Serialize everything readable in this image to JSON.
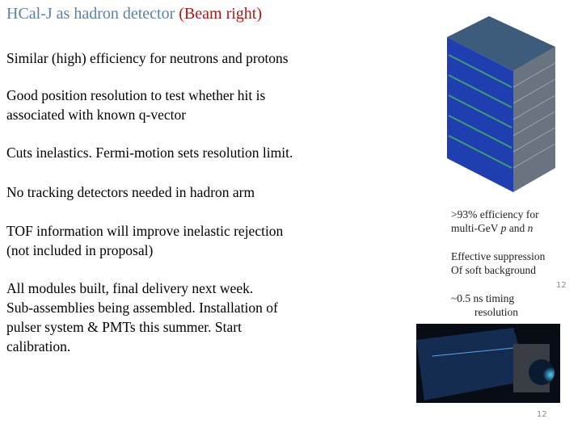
{
  "header": {
    "title": "HCal-J as hadron detector",
    "subtitle": "(Beam right)"
  },
  "bullets": [
    {
      "lines": [
        "Similar (high) efficiency for neutrons and protons"
      ]
    },
    {
      "lines": [
        "Good position resolution to test whether hit is",
        "associated with known q-vector"
      ]
    },
    {
      "lines": [
        "Cuts inelastics.  Fermi-motion sets resolution limit."
      ]
    },
    {
      "lines": [
        "No tracking detectors needed in hadron arm"
      ]
    },
    {
      "lines": [
        "TOF information will improve inelastic rejection",
        "(not included in proposal)"
      ]
    },
    {
      "lines": [
        "All modules built, final delivery next week.",
        "Sub-assemblies being assembled.  Installation of",
        "pulser system & PMTs this summer.  Start",
        "calibration."
      ]
    }
  ],
  "annotations": {
    "efficiency": {
      "line1": ">93% efficiency for",
      "line2": [
        "multi-GeV ",
        "p",
        " and ",
        "n"
      ]
    },
    "suppression": {
      "lines": [
        "Effective suppression",
        "Of soft background"
      ]
    },
    "badge": "12",
    "timing": {
      "lines": [
        "~0.5 ns timing",
        "resolution"
      ]
    }
  },
  "footer": {
    "page": "12"
  }
}
